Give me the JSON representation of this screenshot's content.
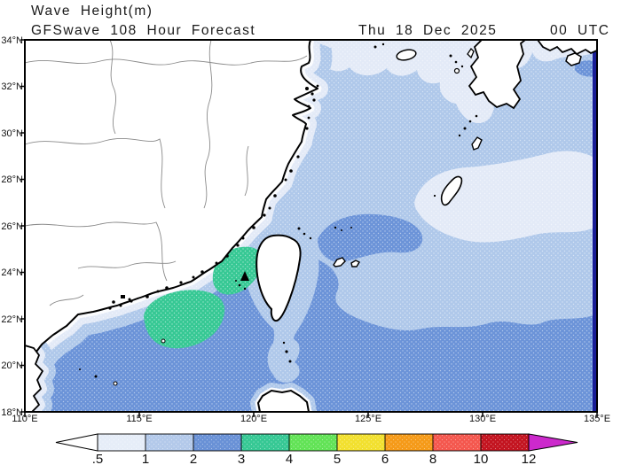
{
  "header": {
    "product_title": "Wave Height(m)",
    "model_run_line": "GFSwave 108 Hour Forecast",
    "valid_time": "Thu 18 Dec 2025",
    "cycle_time": "00 UTC"
  },
  "map": {
    "lat_labels": [
      "34°N",
      "32°N",
      "30°N",
      "28°N",
      "26°N",
      "24°N",
      "22°N",
      "20°N",
      "18°N"
    ],
    "lon_labels": [
      "110°E",
      "115°E",
      "120°E",
      "125°E",
      "130°E",
      "135°E"
    ]
  },
  "colorbar": {
    "unit": "m",
    "boundary_labels": [
      ".5",
      "1",
      "2",
      "3",
      "4",
      "5",
      "6",
      "8",
      "10",
      "12"
    ],
    "band_colors": [
      "#FFFFFF",
      "#E6EDF8",
      "#B3C9EA",
      "#6991D6",
      "#36C894",
      "#62E356",
      "#F2E02E",
      "#F59A18",
      "#F4574E",
      "#C31420",
      "#CC29CC"
    ]
  },
  "palette": {
    "sea_lt_05": "#FBFCFE",
    "sea_05_1": "#E3EAF7",
    "sea_1_2": "#AFC8EA",
    "sea_2_3": "#6B93D8",
    "sea_3_4": "#36C894",
    "edge_stripe": "#191D96",
    "land": "#FFFFFF",
    "coastline": "#000000",
    "province_border": "#8A8A8A"
  }
}
